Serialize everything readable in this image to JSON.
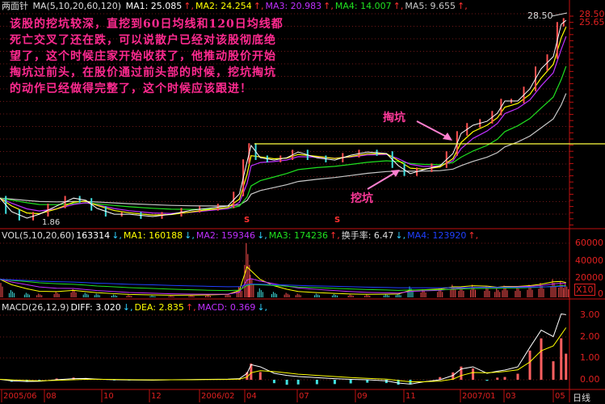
{
  "header": {
    "stock_name": "两面针",
    "ma_label": "MA(5,10,20,60,120)",
    "ma": [
      {
        "label": "MA1: 25.085",
        "dir": "up",
        "color": "#ffffff"
      },
      {
        "label": "MA2: 24.254",
        "dir": "up",
        "color": "#ffff00"
      },
      {
        "label": "MA3: 20.983",
        "dir": "up",
        "color": "#c030ff"
      },
      {
        "label": "MA4: 14.007",
        "dir": "up",
        "color": "#20e020"
      },
      {
        "label": "MA5: 9.655",
        "dir": "up",
        "color": "#c8c8c8"
      }
    ]
  },
  "annotation": {
    "lines": [
      "该股的挖坑较深，直挖到60日均线和120日均线都",
      "死亡交叉了还在跌，可以说散户已经对该股彻底绝",
      "望了，这个时候庄家开始收获了，他推动股价开始",
      "掏坑过前头，在股价通过前头部的时候，挖坑掏坑",
      "的动作已经做得完整了，这个时候应该跟进！"
    ],
    "label_fill": "掏坑",
    "label_dig": "挖坑",
    "color": "#ff2a90"
  },
  "price_markers": {
    "high": "28.50",
    "low": "1.86",
    "signal": "S"
  },
  "right_axis": {
    "top": "28.50",
    "second": "25.65"
  },
  "volume": {
    "header": [
      {
        "label": "VOL(5,10,20,60)",
        "color": "#dddddd",
        "dir": ""
      },
      {
        "label": "163314",
        "color": "#ffffff",
        "dir": "dn"
      },
      {
        "label": "MA1: 160188",
        "color": "#ffff00",
        "dir": "dn"
      },
      {
        "label": "MA2: 159346",
        "color": "#c030ff",
        "dir": "dn"
      },
      {
        "label": "MA3: 174236",
        "color": "#20e020",
        "dir": "up"
      },
      {
        "label": "换手率: 6.47",
        "color": "#dddddd",
        "dir": "dn"
      },
      {
        "label": "MA4: 123920",
        "color": "#2040ff",
        "dir": "up"
      }
    ],
    "axis": [
      "60000",
      "40000",
      "20000",
      "0"
    ],
    "unit": "X10"
  },
  "macd": {
    "header": [
      {
        "label": "MACD(26,12,9)",
        "color": "#dddddd",
        "dir": ""
      },
      {
        "label": "DIFF: 3.020",
        "color": "#ffffff",
        "dir": "dn"
      },
      {
        "label": "DEA: 2.835",
        "color": "#ffff00",
        "dir": "up"
      },
      {
        "label": "MACD: 0.369",
        "color": "#c030ff",
        "dir": "dn"
      }
    ],
    "axis": [
      "3.00",
      "2.00",
      "1.00",
      "0.00"
    ]
  },
  "date_axis": {
    "ticks": [
      "2005/06",
      "08",
      "10",
      "12",
      "2006/02",
      "04",
      "07",
      "09",
      "11",
      "2007/01",
      "03",
      "05"
    ],
    "period": "日线"
  },
  "chart_data": {
    "type": "line",
    "yscale": "log",
    "ylim": [
      1.86,
      28.5
    ],
    "grid": true,
    "dates": [
      "2005-06-01",
      "2005-06-17",
      "2005-07-08",
      "2005-07-25",
      "2005-08-14",
      "2005-09-01",
      "2005-09-14",
      "2005-09-26",
      "2005-10-17",
      "2005-11-05",
      "2005-12-05",
      "2005-12-28",
      "2006-01-22",
      "2006-02-12",
      "2006-03-10",
      "2006-03-25",
      "2006-04-05",
      "2006-04-12",
      "2006-04-28",
      "2006-05-22",
      "2006-06-13",
      "2006-07-02",
      "2006-07-22",
      "2006-08-10",
      "2006-08-27",
      "2006-09-16",
      "2006-10-10",
      "2006-10-25",
      "2006-11-08",
      "2006-11-22",
      "2006-12-10",
      "2006-12-24",
      "2007-01-02",
      "2007-01-18",
      "2007-02-06",
      "2007-02-20",
      "2007-03-02",
      "2007-03-18",
      "2007-04-02",
      "2007-04-16",
      "2007-05-01",
      "2007-05-14",
      "2007-05-22"
    ],
    "close": [
      2.43,
      2.03,
      1.86,
      1.96,
      2.19,
      2.43,
      2.36,
      2.12,
      1.96,
      1.96,
      1.9,
      1.96,
      2.07,
      2.12,
      2.19,
      2.57,
      3.96,
      4.91,
      4.17,
      4.04,
      4.17,
      4.5,
      4.17,
      4.04,
      4.31,
      4.5,
      4.41,
      3.75,
      3.37,
      3.55,
      3.75,
      4.41,
      5.77,
      6.43,
      6.78,
      7.56,
      8.89,
      8.89,
      10.45,
      13.68,
      16.09,
      24.77,
      26.1
    ],
    "volume": [
      20000,
      8000,
      5000,
      4000,
      6000,
      9000,
      5000,
      4000,
      3000,
      2500,
      2000,
      2000,
      2500,
      3000,
      4000,
      12000,
      60000,
      25000,
      10000,
      6000,
      5000,
      4000,
      4000,
      3500,
      3000,
      3000,
      3500,
      4000,
      12000,
      9000,
      10000,
      14000,
      12000,
      14000,
      12000,
      10000,
      13000,
      12000,
      14000,
      16000,
      20000,
      18000,
      15000
    ],
    "macd_diff": [
      0.02,
      -0.05,
      -0.08,
      -0.07,
      0.0,
      0.05,
      0.06,
      0.03,
      0.0,
      -0.01,
      -0.02,
      0.0,
      0.01,
      0.02,
      0.03,
      0.05,
      0.3,
      0.7,
      0.6,
      0.3,
      0.2,
      0.15,
      0.1,
      0.05,
      0.02,
      0.0,
      -0.05,
      -0.15,
      -0.2,
      -0.1,
      0.0,
      0.2,
      0.5,
      0.6,
      0.3,
      0.4,
      0.45,
      0.6,
      1.5,
      2.3,
      2.0,
      3.05,
      3.02
    ]
  }
}
